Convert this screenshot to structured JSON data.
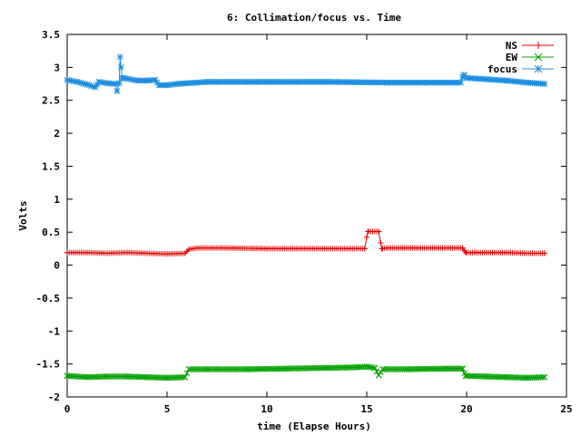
{
  "chart_data": {
    "type": "line",
    "title": "6: Collimation/focus vs. Time",
    "xlabel": "time (Elapse Hours)",
    "ylabel": "Volts",
    "xlim": [
      0,
      25
    ],
    "ylim": [
      -2,
      3.5
    ],
    "x_ticks": [
      0,
      5,
      10,
      15,
      20,
      25
    ],
    "y_ticks": [
      -2,
      -1.5,
      -1,
      -0.5,
      0,
      0.5,
      1,
      1.5,
      2,
      2.5,
      3,
      3.5
    ],
    "x_tick_labels": [
      "0",
      "5",
      "10",
      "15",
      "20",
      "25"
    ],
    "y_tick_labels": [
      "-2",
      "-1.5",
      "-1",
      "-0.5",
      "0",
      "0.5",
      "1",
      "1.5",
      "2",
      "2.5",
      "3",
      "3.5"
    ],
    "grid": false,
    "legend_position": "top-right",
    "x_range_data": [
      0,
      23.9
    ],
    "series": [
      {
        "name": "NS",
        "color": "#e00000",
        "marker": "plus",
        "points": [
          [
            0,
            0.19
          ],
          [
            1,
            0.19
          ],
          [
            2,
            0.18
          ],
          [
            3,
            0.19
          ],
          [
            4,
            0.18
          ],
          [
            5,
            0.17
          ],
          [
            5.9,
            0.18
          ],
          [
            6.1,
            0.24
          ],
          [
            6.5,
            0.26
          ],
          [
            8,
            0.26
          ],
          [
            10,
            0.25
          ],
          [
            12,
            0.25
          ],
          [
            14,
            0.25
          ],
          [
            14.9,
            0.25
          ],
          [
            15.05,
            0.51
          ],
          [
            15.6,
            0.51
          ],
          [
            15.75,
            0.25
          ],
          [
            16,
            0.26
          ],
          [
            18,
            0.26
          ],
          [
            19.8,
            0.26
          ],
          [
            19.95,
            0.19
          ],
          [
            20.5,
            0.19
          ],
          [
            22,
            0.19
          ],
          [
            23,
            0.18
          ],
          [
            23.9,
            0.18
          ]
        ]
      },
      {
        "name": "EW",
        "color": "#00a000",
        "marker": "x",
        "points": [
          [
            0,
            -1.68
          ],
          [
            1,
            -1.7
          ],
          [
            2,
            -1.69
          ],
          [
            3,
            -1.69
          ],
          [
            4,
            -1.7
          ],
          [
            5,
            -1.71
          ],
          [
            5.9,
            -1.7
          ],
          [
            6.1,
            -1.58
          ],
          [
            7,
            -1.58
          ],
          [
            9,
            -1.58
          ],
          [
            11,
            -1.57
          ],
          [
            13,
            -1.56
          ],
          [
            14.5,
            -1.55
          ],
          [
            15,
            -1.54
          ],
          [
            15.4,
            -1.56
          ],
          [
            15.6,
            -1.67
          ],
          [
            15.8,
            -1.58
          ],
          [
            17,
            -1.58
          ],
          [
            19,
            -1.57
          ],
          [
            19.8,
            -1.57
          ],
          [
            19.95,
            -1.68
          ],
          [
            21,
            -1.69
          ],
          [
            22,
            -1.7
          ],
          [
            23,
            -1.71
          ],
          [
            23.9,
            -1.7
          ]
        ]
      },
      {
        "name": "focus",
        "color": "#1e8ee0",
        "marker": "star",
        "points": [
          [
            0,
            2.81
          ],
          [
            0.5,
            2.78
          ],
          [
            1,
            2.74
          ],
          [
            1.4,
            2.7
          ],
          [
            1.6,
            2.78
          ],
          [
            2,
            2.76
          ],
          [
            2.4,
            2.75
          ],
          [
            2.5,
            2.64
          ],
          [
            2.6,
            2.76
          ],
          [
            2.65,
            3.16
          ],
          [
            2.75,
            2.84
          ],
          [
            3,
            2.83
          ],
          [
            3.5,
            2.8
          ],
          [
            4,
            2.8
          ],
          [
            4.4,
            2.81
          ],
          [
            4.6,
            2.73
          ],
          [
            5,
            2.73
          ],
          [
            5.5,
            2.75
          ],
          [
            6,
            2.76
          ],
          [
            7,
            2.78
          ],
          [
            10,
            2.78
          ],
          [
            13,
            2.78
          ],
          [
            16,
            2.77
          ],
          [
            18,
            2.77
          ],
          [
            19.7,
            2.77
          ],
          [
            19.85,
            2.89
          ],
          [
            20,
            2.84
          ],
          [
            21,
            2.82
          ],
          [
            22,
            2.8
          ],
          [
            23,
            2.77
          ],
          [
            23.9,
            2.75
          ]
        ]
      }
    ]
  }
}
